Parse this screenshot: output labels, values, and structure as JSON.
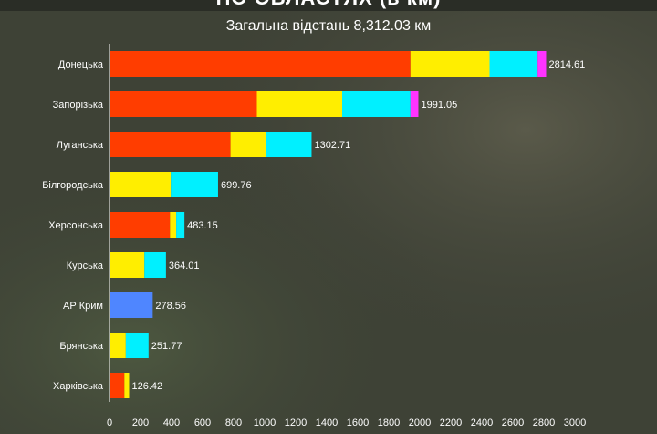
{
  "header": {
    "title": "ПО ОБЛАСТЯХ (в км)",
    "subtitle": "Загальна відстань 8,312.03 км"
  },
  "colors": {
    "segments": [
      "#ff3d00",
      "#ffee00",
      "#00f0ff",
      "#ff33ff",
      "#4f86ff"
    ],
    "text": "#ffffff",
    "axis": "#ffffff"
  },
  "chart_data": {
    "type": "bar",
    "orientation": "horizontal",
    "stacked": true,
    "title": "ПО ОБЛАСТЯХ (в км)",
    "subtitle": "Загальна відстань 8,312.03 км",
    "xlim": [
      0,
      3000
    ],
    "x_ticks": [
      0,
      200,
      400,
      600,
      800,
      1000,
      1200,
      1400,
      1600,
      1800,
      2000,
      2200,
      2400,
      2600,
      2800,
      3000
    ],
    "grid": false,
    "legend": "none",
    "categories": [
      "Донецька",
      "Запорізька",
      "Луганська",
      "Білгородська",
      "Херсонська",
      "Курська",
      "АР Крим",
      "Брянська",
      "Харківська"
    ],
    "totals": [
      "2814.61",
      "1991.05",
      "1302.71",
      "699.76",
      "483.15",
      "364.01",
      "278.56",
      "251.77",
      "126.42"
    ],
    "segments": [
      [
        1940,
        510,
        310,
        54.61
      ],
      [
        950,
        550,
        440,
        51.05
      ],
      [
        780,
        230,
        292.71
      ],
      [
        0,
        395,
        304.76
      ],
      [
        390,
        40,
        53.15
      ],
      [
        0,
        225,
        139.01
      ],
      [
        0,
        0,
        0,
        0,
        278.56
      ],
      [
        0,
        105,
        146.77
      ],
      [
        96,
        30.42
      ]
    ]
  }
}
